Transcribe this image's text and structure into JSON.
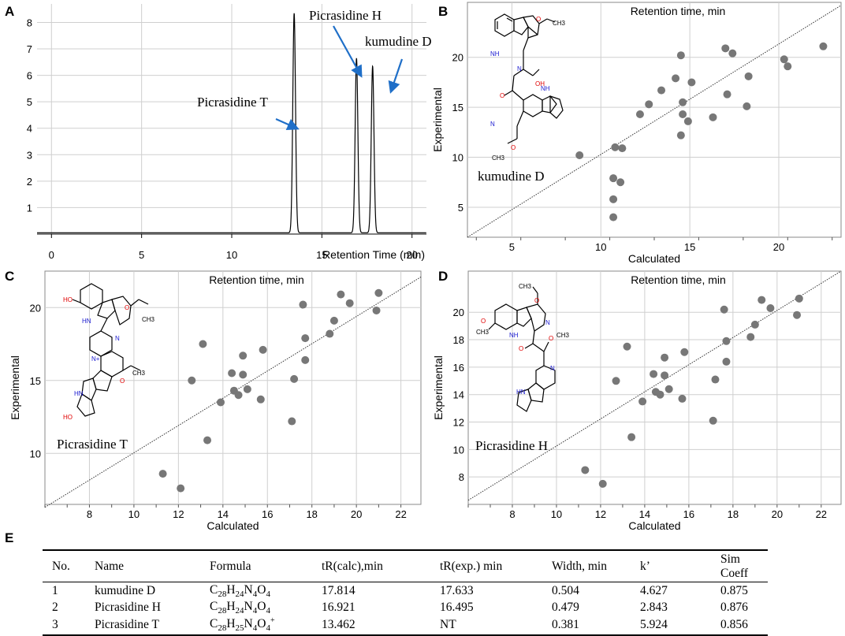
{
  "panels": {
    "A": {
      "letter": "A"
    },
    "B": {
      "letter": "B"
    },
    "C": {
      "letter": "C"
    },
    "D": {
      "letter": "D"
    },
    "E": {
      "letter": "E"
    }
  },
  "chart_data": [
    {
      "id": "A",
      "type": "line",
      "title": "",
      "xlabel": "Retention Time (min)",
      "ylabel": "",
      "xlim": [
        -0.8,
        20.8
      ],
      "ylim": [
        0,
        8.7
      ],
      "xticks": [
        0,
        5,
        10,
        15,
        20
      ],
      "yticks": [
        1,
        2,
        3,
        4,
        5,
        6,
        7,
        8
      ],
      "series": [
        {
          "name": "chromatogram",
          "peaks": [
            {
              "center": 13.462,
              "height": 8.3
            },
            {
              "center": 16.921,
              "height": 6.6
            },
            {
              "center": 17.814,
              "height": 6.3
            }
          ]
        }
      ],
      "annotations": [
        {
          "text": "Picrasidine T",
          "peak_index": 0
        },
        {
          "text": "Picrasidine H",
          "peak_index": 1
        },
        {
          "text": "kumudine D",
          "peak_index": 2
        }
      ]
    },
    {
      "id": "B",
      "type": "scatter",
      "title": "Retention time, min",
      "xlabel": "Calculated",
      "ylabel": "Experimental",
      "xlim": [
        2.5,
        23.5
      ],
      "ylim": [
        2.0,
        25.5
      ],
      "xticks": [
        5,
        10,
        15,
        20
      ],
      "yticks": [
        5,
        10,
        15,
        20
      ],
      "x": [
        8.8,
        10.7,
        10.7,
        10.7,
        10.8,
        11.1,
        11.2,
        12.2,
        12.7,
        13.4,
        14.2,
        14.5,
        14.5,
        14.6,
        14.6,
        14.9,
        15.1,
        16.3,
        17.0,
        17.1,
        17.4,
        18.2,
        18.3,
        20.3,
        20.5,
        22.5
      ],
      "y": [
        10.2,
        4.0,
        5.8,
        7.9,
        11.0,
        7.5,
        10.9,
        14.3,
        15.3,
        16.7,
        17.9,
        12.2,
        20.2,
        15.5,
        14.3,
        13.6,
        17.5,
        14.0,
        20.9,
        16.3,
        20.4,
        15.1,
        18.1,
        19.8,
        19.1,
        21.1
      ],
      "trendline": {
        "from": [
          2.5,
          2.0
        ],
        "to": [
          23.5,
          25.2
        ]
      },
      "compound_label": "kumudine D"
    },
    {
      "id": "C",
      "type": "scatter",
      "title": "Retention time, min",
      "xlabel": "Calculated",
      "ylabel": "Experimental",
      "xlim": [
        6.0,
        22.9
      ],
      "ylim": [
        6.5,
        22.5
      ],
      "xticks": [
        8,
        10,
        12,
        14,
        16,
        18,
        20,
        22
      ],
      "yticks": [
        10,
        15,
        20
      ],
      "x": [
        11.3,
        12.1,
        12.6,
        13.1,
        13.3,
        13.9,
        14.4,
        14.5,
        14.7,
        14.9,
        14.9,
        15.1,
        15.7,
        15.8,
        17.1,
        17.2,
        17.6,
        17.7,
        17.7,
        18.8,
        19.0,
        19.3,
        19.7,
        20.9,
        21.0
      ],
      "y": [
        8.6,
        7.6,
        15.0,
        17.5,
        10.9,
        13.5,
        15.5,
        14.3,
        14.0,
        16.7,
        15.4,
        14.4,
        13.7,
        17.1,
        12.2,
        15.1,
        20.2,
        17.9,
        16.4,
        18.2,
        19.1,
        20.9,
        20.3,
        19.8,
        21.0
      ],
      "trendline": {
        "from": [
          6.0,
          6.3
        ],
        "to": [
          22.9,
          22.1
        ]
      },
      "compound_label": "Picrasidine T"
    },
    {
      "id": "D",
      "type": "scatter",
      "title": "Retention time, min",
      "xlabel": "Calculated",
      "ylabel": "Experimental",
      "xlim": [
        6.0,
        22.9
      ],
      "ylim": [
        6.0,
        23.0
      ],
      "xticks": [
        8,
        10,
        12,
        14,
        16,
        18,
        20,
        22
      ],
      "yticks": [
        8,
        10,
        12,
        14,
        16,
        18,
        20
      ],
      "x": [
        11.3,
        12.1,
        12.7,
        13.2,
        13.4,
        13.9,
        14.4,
        14.5,
        14.7,
        14.9,
        14.9,
        15.1,
        15.7,
        15.8,
        17.1,
        17.2,
        17.6,
        17.7,
        17.7,
        18.8,
        19.0,
        19.3,
        19.7,
        20.9,
        21.0
      ],
      "y": [
        8.5,
        7.5,
        15.0,
        17.5,
        10.9,
        13.5,
        15.5,
        14.2,
        14.0,
        16.7,
        15.4,
        14.4,
        13.7,
        17.1,
        12.1,
        15.1,
        20.2,
        17.9,
        16.4,
        18.2,
        19.1,
        20.9,
        20.3,
        19.8,
        21.0
      ],
      "trendline": {
        "from": [
          6.0,
          6.3
        ],
        "to": [
          22.9,
          23.0
        ]
      },
      "compound_label": "Picrasidine H"
    }
  ],
  "table": {
    "headers": [
      "No.",
      "Name",
      "Formula",
      "tR(calc),min",
      "tR(exp.) min",
      "Width, min",
      "k’",
      "Sim Coeff"
    ],
    "rows": [
      [
        "1",
        "kumudine D",
        "C28H24N4O4",
        "17.814",
        "17.633",
        "0.504",
        "4.627",
        "0.875"
      ],
      [
        "2",
        "Picrasidine H",
        "C28H24N4O4",
        "16.921",
        "16.495",
        "0.479",
        "2.843",
        "0.876"
      ],
      [
        "3",
        "Picrasidine T",
        "C28H25N4O4+",
        "13.462",
        "NT",
        "0.381",
        "5.924",
        "0.856"
      ]
    ]
  },
  "structures": {
    "methoxy_label": "CH3",
    "nh_label": "NH",
    "hn_label": "HN",
    "n_label": "N",
    "n_plus_label": "N+",
    "oh_label": "OH",
    "ho_label": "HO",
    "o_label": "O"
  },
  "colors": {
    "arrow": "#1f6fc8",
    "marker": "#777777",
    "grid": "#cfcfcf",
    "nitrogen": "#1a1ad0",
    "oxygen": "#e00000"
  }
}
